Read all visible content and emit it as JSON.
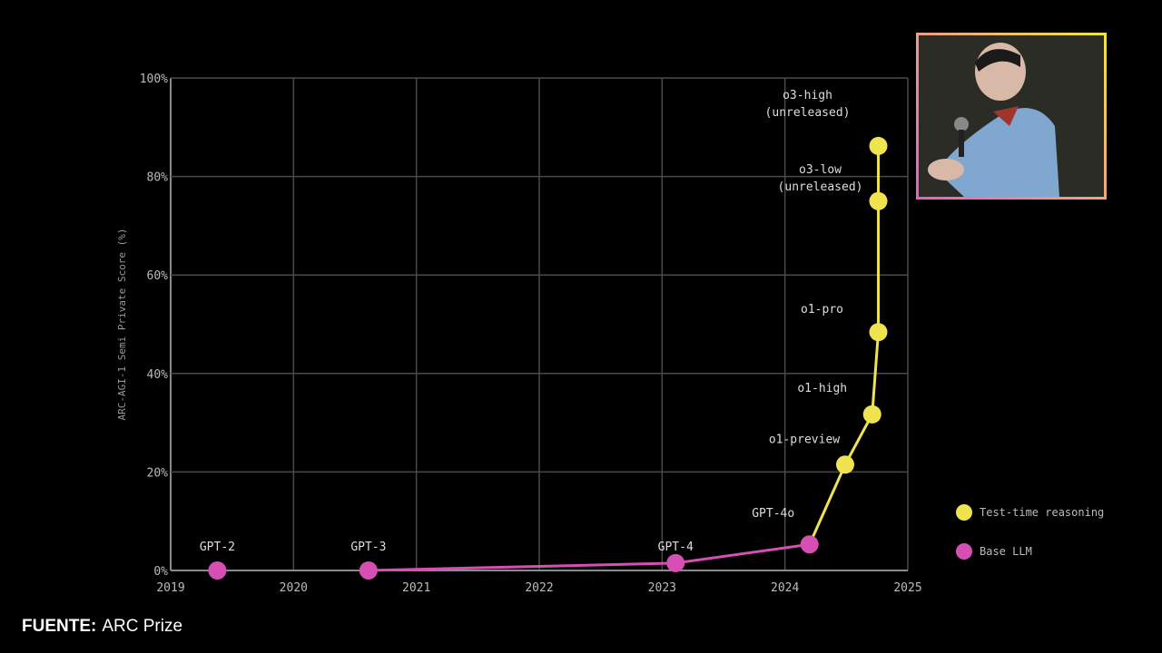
{
  "chart_data": {
    "type": "scatter",
    "ylabel": "ARC-AGI-1 Semi Private Score (%)",
    "xlabel": "",
    "xlim": [
      2019,
      2025
    ],
    "ylim": [
      0,
      100
    ],
    "x_ticks": [
      "2019",
      "2020",
      "2021",
      "2022",
      "2023",
      "2024",
      "2025"
    ],
    "y_ticks": [
      "0%",
      "20%",
      "40%",
      "60%",
      "80%",
      "100%"
    ],
    "grid": true,
    "legend_position": "right",
    "series": [
      {
        "name": "Base LLM",
        "color": "#d64fb4",
        "points": [
          {
            "label": "GPT-2",
            "x": 2019.38,
            "y": 0
          },
          {
            "label": "GPT-3",
            "x": 2020.61,
            "y": 0
          },
          {
            "label": "GPT-4",
            "x": 2023.11,
            "y": 1.5
          },
          {
            "label": "GPT-4o",
            "x": 2024.2,
            "y": 5.3
          }
        ],
        "line_from_index": 1
      },
      {
        "name": "Test-time reasoning",
        "color": "#f0e350",
        "points": [
          {
            "label": "o1-preview",
            "x": 2024.49,
            "y": 21.5
          },
          {
            "label": "o1-high",
            "x": 2024.71,
            "y": 31.7
          },
          {
            "label": "o1-pro",
            "x": 2024.76,
            "y": 48.4
          },
          {
            "label": "o3-low (unreleased)",
            "x": 2024.76,
            "y": 75.0
          },
          {
            "label": "o3-high (unreleased)",
            "x": 2024.76,
            "y": 86.2
          }
        ]
      }
    ],
    "legend": [
      "Test-time reasoning",
      "Base LLM"
    ]
  },
  "source": {
    "label": "FUENTE:",
    "text": "ARC Prize"
  }
}
